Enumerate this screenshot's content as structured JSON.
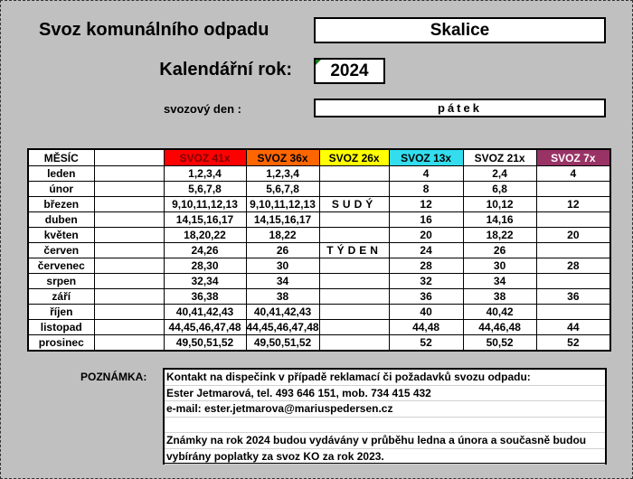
{
  "header": {
    "title": "Svoz komunálního odpadu",
    "town": "Skalice",
    "year_label": "Kalendářní rok:",
    "year": "2024",
    "day_label": "svozový den :",
    "day": "pátek"
  },
  "table": {
    "columns": [
      {
        "label": "MĚSÍC",
        "bg": "#ffffff",
        "color": "#000000"
      },
      {
        "label": "",
        "bg": "#ffffff",
        "color": "#000000"
      },
      {
        "label": "SVOZ 41x",
        "bg": "#ff0000",
        "color": "#7a0000"
      },
      {
        "label": "SVOZ 36x",
        "bg": "#ff6600",
        "color": "#000000"
      },
      {
        "label": "SVOZ 26x",
        "bg": "#ffff00",
        "color": "#000000"
      },
      {
        "label": "SVOZ 13x",
        "bg": "#33ddee",
        "color": "#000000"
      },
      {
        "label": "SVOZ 21x",
        "bg": "#ffffff",
        "color": "#000000"
      },
      {
        "label": "SVOZ 7x",
        "bg": "#993366",
        "color": "#ffffff"
      }
    ],
    "rows": [
      [
        "leden",
        "",
        "1,2,3,4",
        "1,2,3,4",
        "",
        "4",
        "2,4",
        "4"
      ],
      [
        "únor",
        "",
        "5,6,7,8",
        "5,6,7,8",
        "",
        "8",
        "6,8",
        ""
      ],
      [
        "březen",
        "",
        "9,10,11,12,13",
        "9,10,11,12,13",
        "SUDÝ",
        "12",
        "10,12",
        "12"
      ],
      [
        "duben",
        "",
        "14,15,16,17",
        "14,15,16,17",
        "",
        "16",
        "14,16",
        ""
      ],
      [
        "květen",
        "",
        "18,20,22",
        "18,22",
        "",
        "20",
        "18,22",
        "20"
      ],
      [
        "červen",
        "",
        "24,26",
        "26",
        "TÝDEN",
        "24",
        "26",
        ""
      ],
      [
        "červenec",
        "",
        "28,30",
        "30",
        "",
        "28",
        "30",
        "28"
      ],
      [
        "srpen",
        "",
        "32,34",
        "34",
        "",
        "32",
        "34",
        ""
      ],
      [
        "září",
        "",
        "36,38",
        "38",
        "",
        "36",
        "38",
        "36"
      ],
      [
        "říjen",
        "",
        "40,41,42,43",
        "40,41,42,43",
        "",
        "40",
        "40,42",
        ""
      ],
      [
        "listopad",
        "",
        "44,45,46,47,48",
        "44,45,46,47,48",
        "",
        "44,48",
        "44,46,48",
        "44"
      ],
      [
        "prosinec",
        "",
        "49,50,51,52",
        "49,50,51,52",
        "",
        "52",
        "50,52",
        "52"
      ]
    ]
  },
  "notes": {
    "label": "POZNÁMKA:",
    "lines": [
      "Kontakt na dispečink v případě reklamací či požadavků svozu odpadu:",
      "Ester Jetmarová, tel. 493 646 151, mob. 734 415 432",
      "e-mail: ester.jetmarova@mariuspedersen.cz",
      "",
      "Známky na rok 2024 budou vydávány v průběhu ledna a února a současně budou",
      "vybírány poplatky za svoz KO za rok 2023."
    ]
  }
}
